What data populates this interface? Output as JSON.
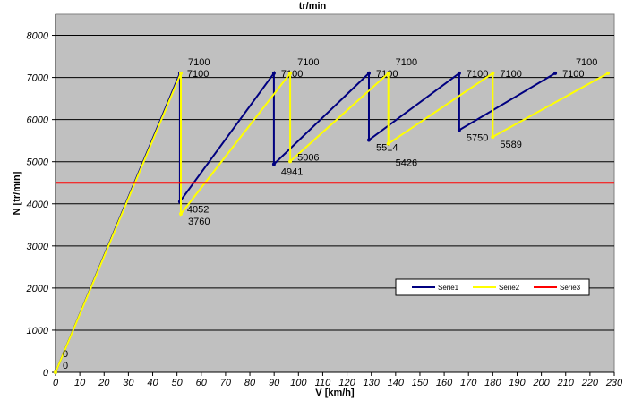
{
  "chart_data": {
    "type": "line",
    "title": "tr/min",
    "xlabel": "V [km/h]",
    "ylabel": "N [tr/min]",
    "xlim": [
      0,
      230
    ],
    "ylim": [
      0,
      8500
    ],
    "xticks": [
      0,
      10,
      20,
      30,
      40,
      50,
      60,
      70,
      80,
      90,
      100,
      110,
      120,
      130,
      140,
      150,
      160,
      170,
      180,
      190,
      200,
      210,
      220,
      230
    ],
    "yticks": [
      0,
      1000,
      2000,
      3000,
      4000,
      5000,
      6000,
      7000,
      8000
    ],
    "grid": "horizontal",
    "legend_position": "right",
    "background": "#c0c0c0",
    "series": [
      {
        "name": "Série1",
        "color": "#000080",
        "points": [
          [
            0,
            0
          ],
          [
            51.2,
            7100
          ],
          [
            51.2,
            4052
          ],
          [
            89.9,
            7100
          ],
          [
            89.9,
            4941
          ],
          [
            129,
            7100
          ],
          [
            129,
            5514
          ],
          [
            166.2,
            7100
          ],
          [
            166.2,
            5750
          ],
          [
            205.7,
            7100
          ]
        ],
        "labels": [
          "0",
          "7100",
          "4052",
          "7100",
          "4941",
          "7100",
          "5514",
          "7100",
          "5750",
          "7100"
        ]
      },
      {
        "name": "Série2",
        "color": "#ffff00",
        "points": [
          [
            0,
            0
          ],
          [
            51.6,
            7100
          ],
          [
            51.6,
            3760
          ],
          [
            96.6,
            7100
          ],
          [
            96.6,
            5006
          ],
          [
            137,
            7100
          ],
          [
            137,
            5426
          ],
          [
            180,
            7100
          ],
          [
            180,
            5589
          ],
          [
            227.4,
            7100
          ]
        ],
        "labels": [
          "0",
          "7100",
          "3760",
          "7100",
          "5006",
          "7100",
          "5426",
          "7100",
          "5589",
          "7100"
        ]
      },
      {
        "name": "Série3",
        "color": "#ff0000",
        "points": [
          [
            0,
            4500
          ],
          [
            230,
            4500
          ]
        ],
        "labels": []
      }
    ]
  }
}
